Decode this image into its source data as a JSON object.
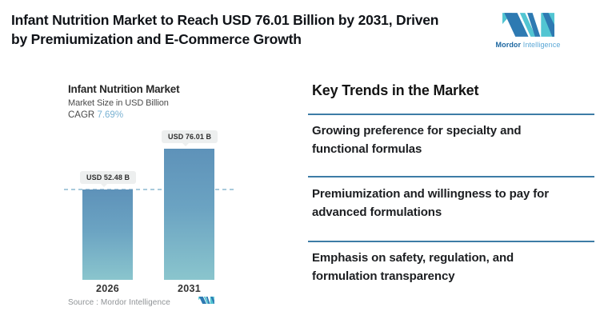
{
  "header": {
    "title_lines": [
      "Infant Nutrition Market to Reach USD 76.01 Billion by 2031, Driven",
      "by Premiumization and E-Commerce Growth"
    ],
    "brand": {
      "word1": "Mordor",
      "word2": "Intelligence"
    }
  },
  "chart": {
    "title": "Infant Nutrition Market",
    "subtitle": "Market Size in USD Billion",
    "cagr_label": "CAGR",
    "cagr_value": "7.69%",
    "source_label": "Source :  Mordor Intelligence"
  },
  "chart_data": {
    "type": "bar",
    "title": "Infant Nutrition Market",
    "subtitle": "Market Size in USD Billion",
    "cagr_percent": 7.69,
    "categories": [
      "2026",
      "2031"
    ],
    "values": [
      52.48,
      76.01
    ],
    "value_labels": [
      "USD 52.48 B",
      "USD 76.01 B"
    ],
    "ylim": [
      0,
      80
    ],
    "grid": false,
    "legend": "none",
    "reference_line": {
      "at_value": 52.48,
      "style": "dashed",
      "color": "#a9cadc"
    },
    "colors": {
      "bar_top": "#5e92b9",
      "bar_bottom": "#8ac5cd"
    }
  },
  "trends": {
    "heading": "Key Trends in the Market",
    "items": [
      {
        "lines": [
          "Growing preference for specialty and",
          "functional formulas"
        ]
      },
      {
        "lines": [
          "Premiumization and willingness to pay for",
          "advanced formulations"
        ]
      },
      {
        "lines": [
          "Emphasis on safety, regulation, and",
          "formulation transparency"
        ]
      }
    ],
    "divider_color": "#3d7ca6"
  },
  "colors": {
    "brand_blue": "#2e7ab2",
    "brand_teal": "#52c5d2",
    "cagr_value": "#79b1d2",
    "title_text": "#101318",
    "source_gray": "#8f9396"
  }
}
